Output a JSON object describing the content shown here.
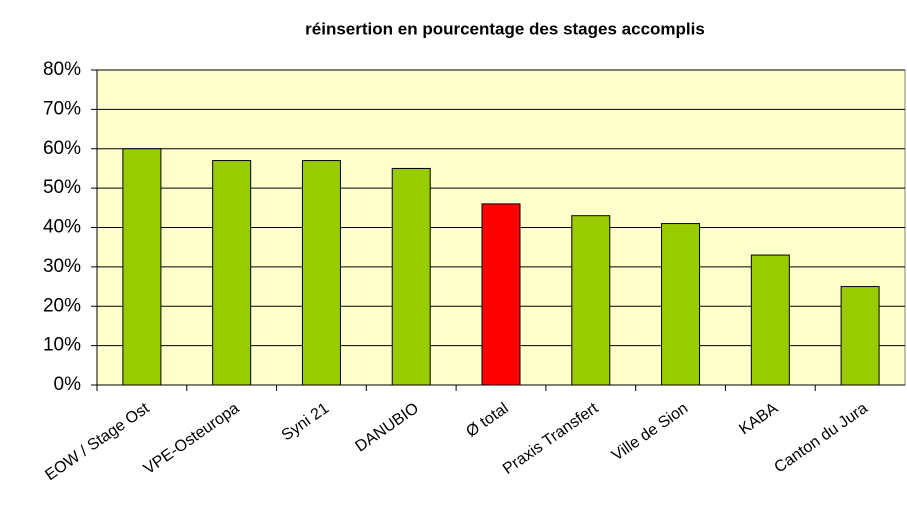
{
  "chart_data": {
    "type": "bar",
    "title": "réinsertion en pourcentage des stages accomplis",
    "categories": [
      "EOW / Stage Ost",
      "VPE-Osteuropa",
      "Syni 21",
      "DANUBIO",
      "Ø total",
      "Praxis Transfert",
      "Ville de Sion",
      "KABA",
      "Canton du Jura"
    ],
    "values": [
      60,
      57,
      57,
      55,
      46,
      43,
      41,
      33,
      25
    ],
    "colors": [
      "#99cc00",
      "#99cc00",
      "#99cc00",
      "#99cc00",
      "#ff0000",
      "#99cc00",
      "#99cc00",
      "#99cc00",
      "#99cc00"
    ],
    "ylim": [
      0,
      80
    ],
    "yticks": [
      {
        "value": 0,
        "label": "0%"
      },
      {
        "value": 10,
        "label": "10%"
      },
      {
        "value": 20,
        "label": "20%"
      },
      {
        "value": 30,
        "label": "30%"
      },
      {
        "value": 40,
        "label": "40%"
      },
      {
        "value": 50,
        "label": "50%"
      },
      {
        "value": 60,
        "label": "60%"
      },
      {
        "value": 70,
        "label": "70%"
      },
      {
        "value": 80,
        "label": "80%"
      }
    ],
    "grid": true
  }
}
